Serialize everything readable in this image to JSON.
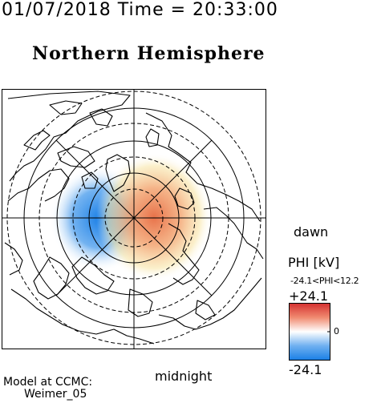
{
  "header": {
    "timestamp": "01/07/2018 Time = 20:33:00",
    "title": "Northern Hemisphere"
  },
  "map": {
    "projection": "polar",
    "hemisphere": "north",
    "orientation": {
      "right": "dawn",
      "bottom": "midnight"
    },
    "labels": {
      "dawn": "dawn",
      "midnight": "midnight"
    },
    "colors": {
      "positive_cell": "#e8724a",
      "negative_cell": "#3f8fe0",
      "neutral": "#ffffff"
    }
  },
  "legend": {
    "quantity": "PHI [kV]",
    "range_text": "-24.1<PHI<12.2",
    "max_label": "+24.1",
    "min_label": "-24.1",
    "zero_label": "0",
    "colors": [
      "#d43030",
      "#f08a70",
      "#ffffff",
      "#6fb0f0",
      "#1a7fe6"
    ]
  },
  "model": {
    "label": "Model at CCMC:",
    "name": "Weimer_05"
  }
}
